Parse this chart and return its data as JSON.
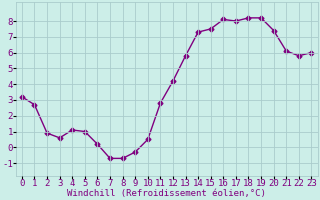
{
  "x": [
    0,
    1,
    2,
    3,
    4,
    5,
    6,
    7,
    8,
    9,
    10,
    11,
    12,
    13,
    14,
    15,
    16,
    17,
    18,
    19,
    20,
    21,
    22,
    23
  ],
  "y": [
    3.2,
    2.7,
    0.9,
    0.6,
    1.1,
    1.0,
    0.2,
    -0.7,
    -0.7,
    -0.3,
    0.5,
    2.8,
    4.2,
    5.8,
    7.3,
    7.5,
    8.1,
    8.0,
    8.2,
    8.2,
    7.4,
    6.1,
    5.8,
    6.0
  ],
  "xlabel": "Windchill (Refroidissement éolien,°C)",
  "line_color": "#800080",
  "marker": "D",
  "marker_size": 2.5,
  "line_width": 1.0,
  "bg_color": "#cceee8",
  "grid_color": "#aacccc",
  "tick_label_color": "#800080",
  "axis_label_color": "#800080",
  "xlim": [
    -0.5,
    23.5
  ],
  "ylim": [
    -1.8,
    9.2
  ],
  "yticks": [
    -1,
    0,
    1,
    2,
    3,
    4,
    5,
    6,
    7,
    8
  ],
  "xticks": [
    0,
    1,
    2,
    3,
    4,
    5,
    6,
    7,
    8,
    9,
    10,
    11,
    12,
    13,
    14,
    15,
    16,
    17,
    18,
    19,
    20,
    21,
    22,
    23
  ],
  "xlabel_fontsize": 6.5,
  "tick_fontsize": 6.5
}
